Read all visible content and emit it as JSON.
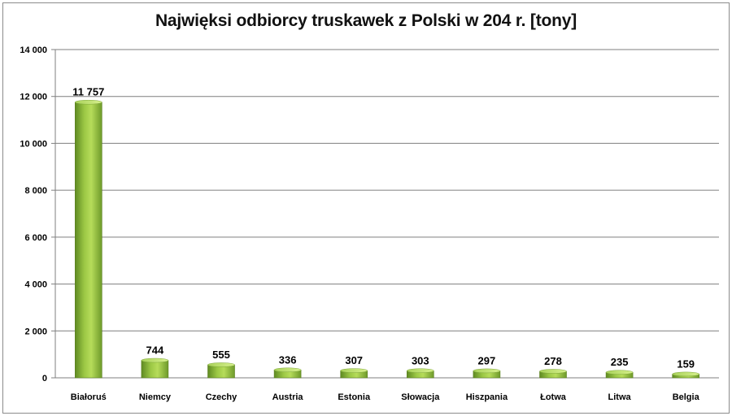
{
  "chart_data": {
    "type": "bar",
    "title": "Najwięksi odbiorcy truskawek z Polski w 204 r. [tony]",
    "xlabel": "",
    "ylabel": "",
    "ylim": [
      0,
      14000
    ],
    "yticks": [
      0,
      2000,
      4000,
      6000,
      8000,
      10000,
      12000,
      14000
    ],
    "ytick_labels": [
      "0",
      "2 000",
      "4 000",
      "6 000",
      "8 000",
      "10 000",
      "12 000",
      "14 000"
    ],
    "categories": [
      "Białoruś",
      "Niemcy",
      "Czechy",
      "Austria",
      "Estonia",
      "Słowacja",
      "Hiszpania",
      "Łotwa",
      "Litwa",
      "Belgia"
    ],
    "values": [
      11757,
      744,
      555,
      336,
      307,
      303,
      297,
      278,
      235,
      159
    ],
    "data_labels": [
      "11 757",
      "744",
      "555",
      "336",
      "307",
      "303",
      "297",
      "278",
      "235",
      "159"
    ],
    "grid": true,
    "legend": "none",
    "colors": {
      "bar_dark": "#6e9a2a",
      "bar_light": "#b6dc5a",
      "bar_top": "#c9e878",
      "grid": "#7f7f7f"
    }
  }
}
